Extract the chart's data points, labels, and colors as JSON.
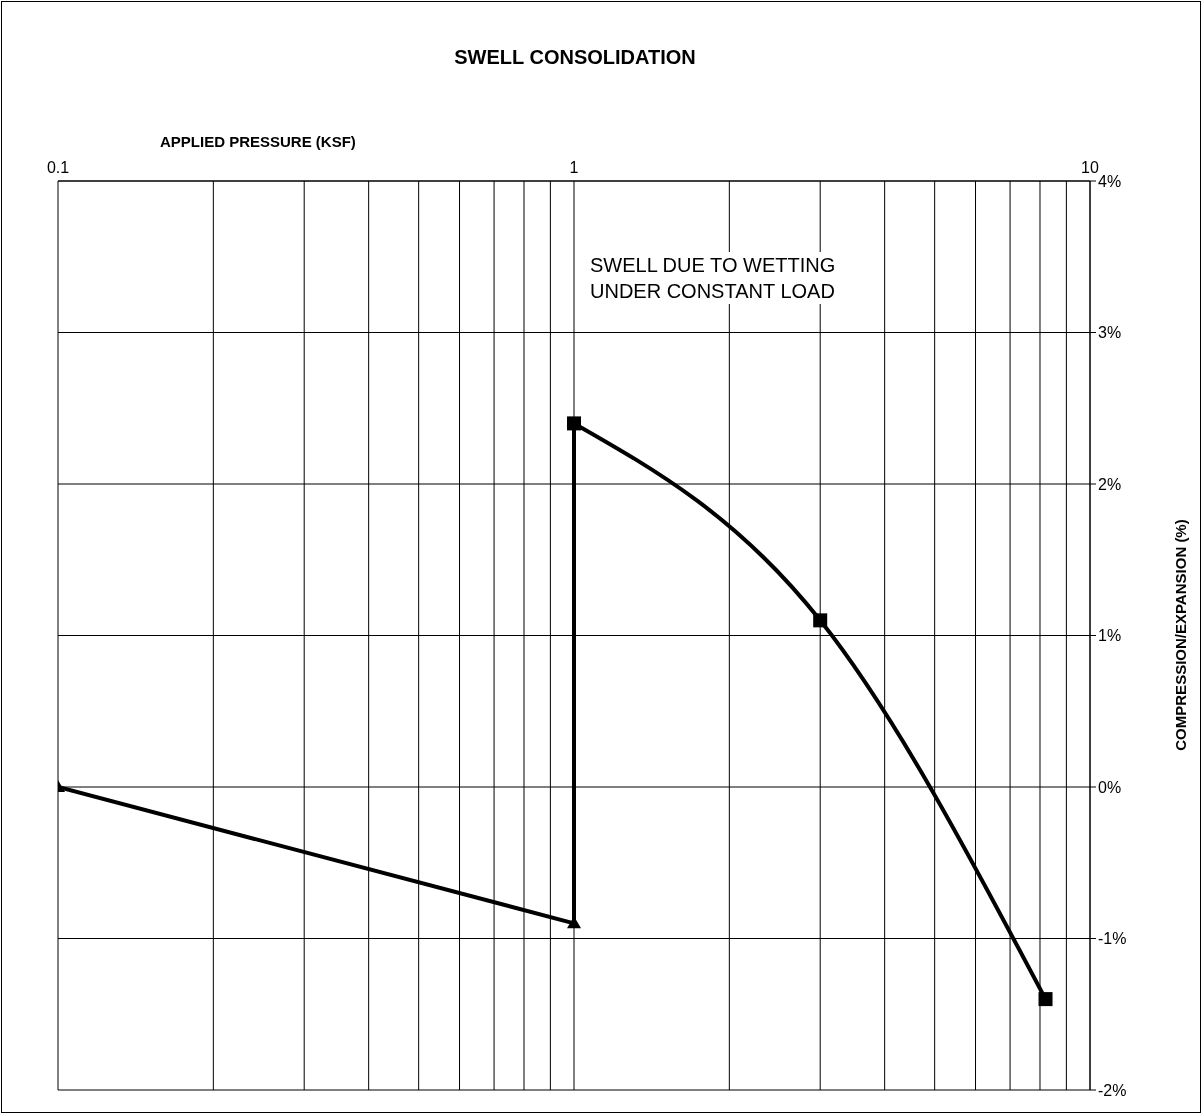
{
  "chart_data": {
    "type": "line",
    "title": "SWELL CONSOLIDATION",
    "xlabel": "APPLIED PRESSURE (KSF)",
    "ylabel": "COMPRESSION/EXPANSION (%)",
    "annotations": [
      "SWELL DUE TO WETTING\nUNDER CONSTANT LOAD"
    ],
    "log": "x",
    "grid": true,
    "xlim": [
      0.1,
      10
    ],
    "xticks": [
      0.1,
      {
        "value": 0.2,
        "label": null
      },
      {
        "value": 0.3,
        "label": null
      },
      {
        "value": 0.4,
        "label": null
      },
      {
        "value": 0.5,
        "label": null
      },
      {
        "value": 0.6,
        "label": null
      },
      {
        "value": 0.7,
        "label": null
      },
      {
        "value": 0.8,
        "label": null
      },
      {
        "value": 0.9,
        "label": null
      },
      1,
      {
        "value": 2,
        "label": null
      },
      {
        "value": 3,
        "label": null
      },
      {
        "value": 4,
        "label": null
      },
      {
        "value": 5,
        "label": null
      },
      {
        "value": 6,
        "label": null
      },
      {
        "value": 7,
        "label": null
      },
      {
        "value": 8,
        "label": null
      },
      {
        "value": 9,
        "label": null
      },
      10
    ],
    "ylim": [
      -2,
      4
    ],
    "yticks": [
      {
        "value": -2,
        "label": "-2%"
      },
      {
        "value": -1,
        "label": "-1%"
      },
      {
        "value": 0,
        "label": "0%"
      },
      {
        "value": 1,
        "label": "1%"
      },
      {
        "value": 2,
        "label": "2%"
      },
      {
        "value": 3,
        "label": "3%"
      },
      {
        "value": 4,
        "label": "4%"
      }
    ],
    "series": [
      {
        "color": "#000000",
        "marker": "triangle",
        "x": [
          0.1,
          1
        ],
        "values": [
          0,
          -0.9
        ]
      },
      {
        "color": "#000000",
        "x": [
          1,
          1
        ],
        "values": [
          -0.9,
          2.4
        ]
      },
      {
        "color": "#000000",
        "marker": "square",
        "x": [
          1,
          3,
          8.2
        ],
        "values": [
          2.4,
          1.1,
          -1.4
        ]
      }
    ]
  }
}
